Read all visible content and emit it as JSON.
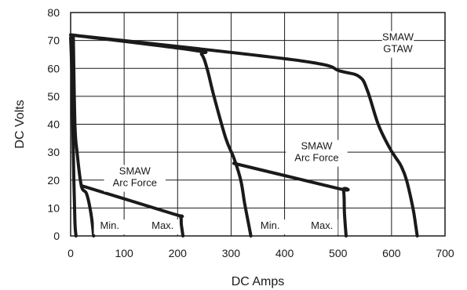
{
  "chart_data": {
    "type": "line",
    "title": "",
    "xlabel": "DC Amps",
    "ylabel": "DC Volts",
    "xlim": [
      0,
      700
    ],
    "ylim": [
      0,
      80
    ],
    "x_ticks": [
      "0",
      "100",
      "200",
      "300",
      "400",
      "500",
      "600",
      "700"
    ],
    "y_ticks": [
      "0",
      "10",
      "20",
      "30",
      "40",
      "50",
      "60",
      "70",
      "80"
    ],
    "grid": true,
    "series": [
      {
        "x": [
          0,
          2,
          4,
          6,
          8,
          10
        ],
        "y": [
          71,
          60,
          40,
          20,
          5,
          0
        ]
      },
      {
        "x": [
          5,
          8,
          12,
          20,
          30,
          38,
          43
        ],
        "y": [
          71,
          40,
          30,
          18,
          15,
          8,
          0
        ]
      },
      {
        "x": [
          20,
          190,
          205,
          207,
          210
        ],
        "y": [
          18,
          8,
          7,
          4,
          0
        ]
      },
      {
        "x": [
          0,
          230,
          245,
          255,
          268,
          290,
          305,
          318,
          325,
          332,
          337
        ],
        "y": [
          72,
          66.5,
          65,
          60,
          50,
          35,
          28,
          20,
          12,
          5,
          0
        ]
      },
      {
        "x": [
          305,
          500,
          510,
          512,
          515
        ],
        "y": [
          26,
          17,
          16.5,
          8,
          0
        ]
      },
      {
        "x": [
          0,
          420,
          505,
          540,
          555,
          575,
          595,
          608,
          618,
          628,
          640,
          645,
          648
        ],
        "y": [
          72,
          63,
          59,
          57,
          52,
          40,
          32,
          28,
          25,
          20,
          10,
          4,
          0
        ]
      }
    ],
    "annotations": [
      {
        "id": "smaw-gtaw",
        "lines": [
          "SMAW",
          "GTAW"
        ],
        "x": 612,
        "y": 70
      },
      {
        "id": "smaw-arc-force-right",
        "lines": [
          "SMAW",
          "Arc Force"
        ],
        "x": 460,
        "y": 31
      },
      {
        "id": "smaw-arc-force-left",
        "lines": [
          "SMAW",
          "Arc Force"
        ],
        "x": 120,
        "y": 22
      },
      {
        "id": "min-left",
        "lines": [
          "Min."
        ],
        "x": 73,
        "y": 2.5
      },
      {
        "id": "max-left",
        "lines": [
          "Max."
        ],
        "x": 172,
        "y": 2.5
      },
      {
        "id": "min-right",
        "lines": [
          "Min."
        ],
        "x": 373,
        "y": 2.5
      },
      {
        "id": "max-right",
        "lines": [
          "Max."
        ],
        "x": 470,
        "y": 2.5
      }
    ]
  }
}
